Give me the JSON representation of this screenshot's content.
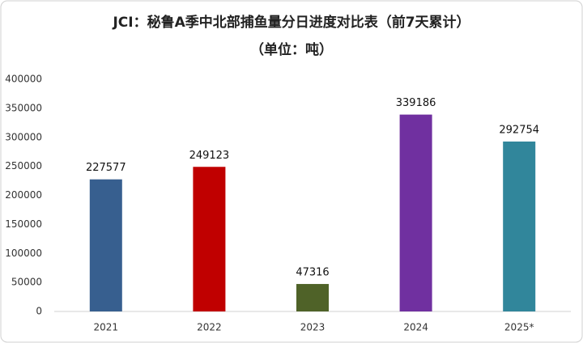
{
  "chart_data": {
    "type": "bar",
    "title": "JCI：秘鲁A季中北部捕鱼量分日进度对比表（前7天累计）",
    "subtitle": "（单位：吨）",
    "categories": [
      "2021",
      "2022",
      "2023",
      "2024",
      "2025*"
    ],
    "values": [
      227577,
      249123,
      47316,
      339186,
      292754
    ],
    "colors": [
      "#375f8f",
      "#c00000",
      "#4f6228",
      "#7030a0",
      "#31869b"
    ],
    "ylim": [
      0,
      400000
    ],
    "yticks": [
      0,
      50000,
      100000,
      150000,
      200000,
      250000,
      300000,
      350000,
      400000
    ],
    "grid": false
  }
}
